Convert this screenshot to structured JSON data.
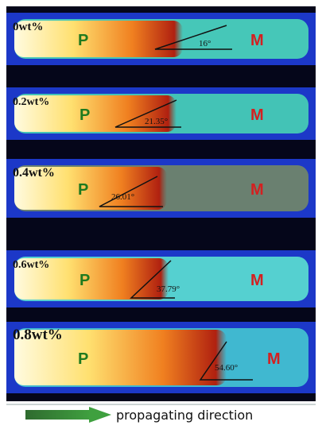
{
  "panels": [
    {
      "label": "0wt%",
      "p": "P",
      "m": "M",
      "angle": "16°"
    },
    {
      "label": "0.2wt%",
      "p": "P",
      "m": "M",
      "angle": "21.35°"
    },
    {
      "label": "0.4wt%",
      "p": "P",
      "m": "M",
      "angle": "26.01°"
    },
    {
      "label": "0.6wt%",
      "p": "P",
      "m": "M",
      "angle": "37.79°"
    },
    {
      "label": "0.8wt%",
      "p": "P",
      "m": "M",
      "angle": "54.60°"
    }
  ],
  "caption": "propagating direction"
}
